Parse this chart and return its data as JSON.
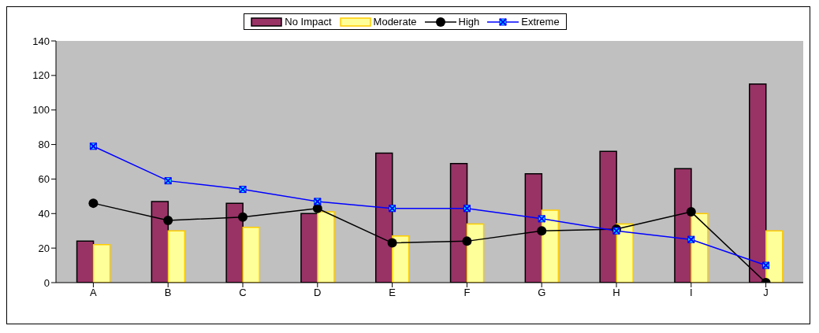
{
  "chart_data": {
    "type": "bar",
    "categories": [
      "A",
      "B",
      "C",
      "D",
      "E",
      "F",
      "G",
      "H",
      "I",
      "J"
    ],
    "series": [
      {
        "name": "No Impact",
        "color": "#993366",
        "values": [
          24,
          47,
          46,
          40,
          75,
          69,
          63,
          76,
          66,
          115
        ]
      },
      {
        "name": "Moderate",
        "color": "#ffff99",
        "values": [
          22,
          30,
          32,
          41,
          27,
          34,
          42,
          34,
          40,
          30
        ]
      },
      {
        "name": "High",
        "type": "line",
        "color": "#000000",
        "marker": "circle",
        "values": [
          46,
          36,
          38,
          43,
          23,
          24,
          30,
          31,
          41,
          0
        ]
      },
      {
        "name": "Extreme",
        "type": "line",
        "color": "#0000ff",
        "marker": "square",
        "values": [
          79,
          59,
          54,
          47,
          43,
          43,
          37,
          30,
          25,
          10
        ]
      }
    ],
    "ylim": [
      0,
      140
    ],
    "yticks": [
      0,
      20,
      40,
      60,
      80,
      100,
      120,
      140
    ],
    "legend": "top",
    "line_style": "solid"
  }
}
